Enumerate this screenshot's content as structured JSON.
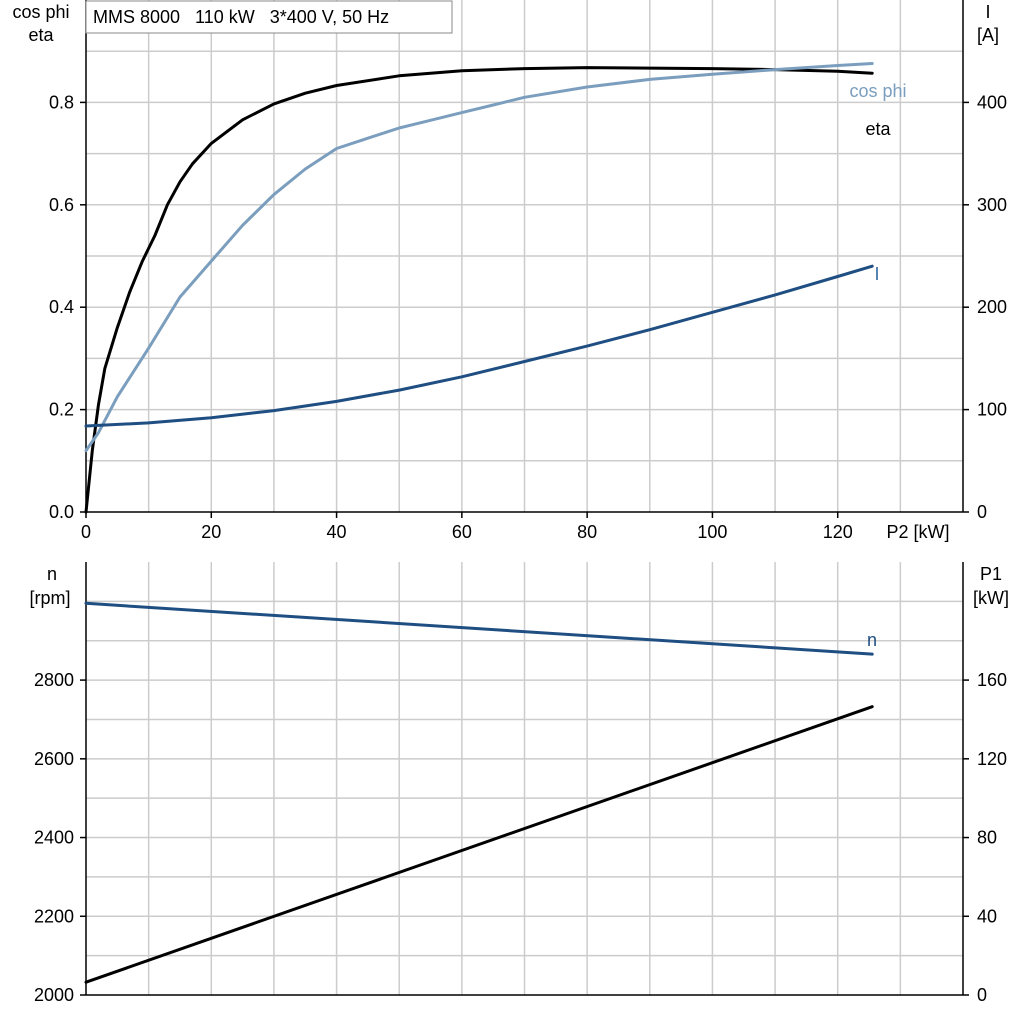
{
  "chart_data": [
    {
      "type": "line",
      "title": "MMS 8000   110 kW   3*400 V, 50 Hz",
      "xlabel": "P2 [kW]",
      "xlim": [
        0,
        140
      ],
      "x_ticks": [
        0,
        20,
        40,
        60,
        80,
        100,
        120
      ],
      "left_axis": {
        "label_line1": "cos phi",
        "label_line2": "eta",
        "ylim": [
          0,
          1.0
        ],
        "ticks": [
          "0.0",
          "0.2",
          "0.4",
          "0.6",
          "0.8"
        ]
      },
      "right_axis": {
        "label_line1": "I",
        "label_line2": "[A]",
        "ylim": [
          0,
          500
        ],
        "ticks": [
          "0",
          "100",
          "200",
          "300",
          "400"
        ]
      },
      "grid": true,
      "series": [
        {
          "name": "eta",
          "axis": "left",
          "color": "#000000",
          "label_color": "#000000",
          "x": [
            0,
            1,
            2,
            3,
            5,
            7,
            9,
            11,
            13,
            15,
            17,
            20,
            25,
            30,
            35,
            40,
            50,
            60,
            70,
            80,
            90,
            100,
            110,
            120,
            125.5
          ],
          "y": [
            0.0,
            0.12,
            0.21,
            0.28,
            0.36,
            0.43,
            0.49,
            0.54,
            0.6,
            0.645,
            0.68,
            0.72,
            0.766,
            0.797,
            0.818,
            0.833,
            0.852,
            0.862,
            0.866,
            0.868,
            0.867,
            0.866,
            0.864,
            0.861,
            0.857
          ]
        },
        {
          "name": "cos phi",
          "axis": "left",
          "color": "#7b9ebe",
          "label_color": "#7b9ebe",
          "x": [
            0,
            2,
            5,
            10,
            15,
            20,
            25,
            30,
            35,
            40,
            45,
            50,
            55,
            60,
            65,
            70,
            80,
            90,
            100,
            110,
            120,
            125.5
          ],
          "y": [
            0.12,
            0.155,
            0.225,
            0.32,
            0.42,
            0.49,
            0.56,
            0.62,
            0.67,
            0.71,
            0.73,
            0.75,
            0.765,
            0.78,
            0.795,
            0.81,
            0.83,
            0.845,
            0.855,
            0.864,
            0.872,
            0.876
          ]
        },
        {
          "name": "I",
          "axis": "right",
          "color": "#1f4e82",
          "label_color": "#3a6ea5",
          "x": [
            0,
            10,
            20,
            30,
            40,
            50,
            60,
            70,
            80,
            90,
            100,
            110,
            120,
            125.5
          ],
          "y": [
            84,
            87,
            92,
            99,
            108,
            119,
            132,
            147,
            162,
            178,
            195,
            212,
            230,
            240
          ]
        }
      ]
    },
    {
      "type": "line",
      "xlim": [
        0,
        140
      ],
      "left_axis": {
        "label_line1": "n",
        "label_line2": "[rpm]",
        "ylim": [
          2000,
          3100
        ],
        "ticks": [
          "2000",
          "2200",
          "2400",
          "2600",
          "2800"
        ]
      },
      "right_axis": {
        "label_line1": "P1",
        "label_line2": "[kW]",
        "ylim": [
          0,
          220
        ],
        "ticks": [
          "0",
          "40",
          "80",
          "120",
          "160"
        ]
      },
      "grid": true,
      "series": [
        {
          "name": "n",
          "axis": "left",
          "color": "#1f4e82",
          "label_color": "#1f4e82",
          "x": [
            0,
            125.5
          ],
          "y": [
            2995,
            2866
          ]
        },
        {
          "axis": "right",
          "color": "#000000",
          "x": [
            0,
            125.5
          ],
          "y": [
            6.5,
            146.5
          ]
        }
      ]
    }
  ]
}
